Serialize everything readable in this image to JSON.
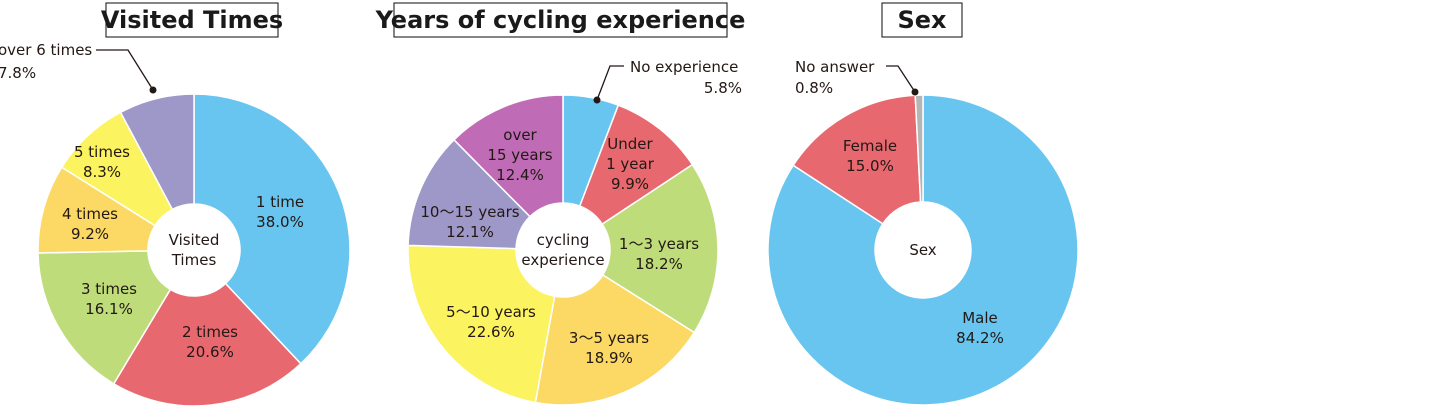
{
  "chart_data": [
    {
      "type": "pie",
      "title": "Visited Times",
      "center_label": [
        "Visited",
        "Times"
      ],
      "series": [
        {
          "name": "1 time",
          "value": 38.0,
          "label_lines": [
            "1 time",
            "38.0%"
          ],
          "color": "#67c5f0"
        },
        {
          "name": "2 times",
          "value": 20.6,
          "label_lines": [
            "2 times",
            "20.6%"
          ],
          "color": "#e8686f"
        },
        {
          "name": "3 times",
          "value": 16.1,
          "label_lines": [
            "3 times",
            "16.1%"
          ],
          "color": "#bedd7a"
        },
        {
          "name": "4 times",
          "value": 9.2,
          "label_lines": [
            "4 times",
            "9.2%"
          ],
          "color": "#fcd964"
        },
        {
          "name": "5 times",
          "value": 8.3,
          "label_lines": [
            "5 times",
            "8.3%"
          ],
          "color": "#fbf35f"
        },
        {
          "name": "over 6 times",
          "value": 7.8,
          "label_lines": [
            "over 6 times",
            "7.8%"
          ],
          "color": "#9e98c9"
        }
      ]
    },
    {
      "type": "pie",
      "title": "Years of cycling experience",
      "center_label": [
        "cycling",
        "experience"
      ],
      "series": [
        {
          "name": "No experience",
          "value": 5.8,
          "label_lines": [
            "No experience",
            "5.8%"
          ],
          "color": "#67c5f0"
        },
        {
          "name": "Under 1 year",
          "value": 9.9,
          "label_lines": [
            "Under",
            "1 year",
            "9.9%"
          ],
          "color": "#e8686f"
        },
        {
          "name": "1〜3 years",
          "value": 18.2,
          "label_lines": [
            "1〜3 years",
            "18.2%"
          ],
          "color": "#bedd7a"
        },
        {
          "name": "3〜5 years",
          "value": 18.9,
          "label_lines": [
            "3〜5 years",
            "18.9%"
          ],
          "color": "#fcd964"
        },
        {
          "name": "5〜10 years",
          "value": 22.6,
          "label_lines": [
            "5〜10 years",
            "22.6%"
          ],
          "color": "#fbf35f"
        },
        {
          "name": "10〜15 years",
          "value": 12.1,
          "label_lines": [
            "10〜15 years",
            "12.1%"
          ],
          "color": "#9e98c9"
        },
        {
          "name": "over 15 years",
          "value": 12.4,
          "label_lines": [
            "over",
            "15 years",
            "12.4%"
          ],
          "color": "#c06bb6"
        }
      ]
    },
    {
      "type": "pie",
      "title": "Sex",
      "center_label": [
        "Sex"
      ],
      "series": [
        {
          "name": "Male",
          "value": 84.2,
          "label_lines": [
            "Male",
            "84.2%"
          ],
          "color": "#67c5f0"
        },
        {
          "name": "Female",
          "value": 15.0,
          "label_lines": [
            "Female",
            "15.0%"
          ],
          "color": "#e8686f"
        },
        {
          "name": "No answer",
          "value": 0.8,
          "label_lines": [
            "No answer",
            "0.8%"
          ],
          "color": "#b5b5b5"
        }
      ]
    }
  ]
}
